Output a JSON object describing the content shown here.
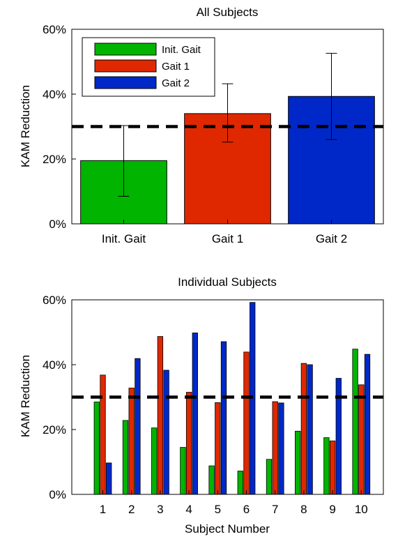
{
  "chart_data": [
    {
      "type": "bar",
      "title": "All Subjects",
      "xlabel": "",
      "ylabel": "KAM Reduction",
      "ylim": [
        0,
        60
      ],
      "yticks": [
        "0%",
        "20%",
        "40%",
        "60%"
      ],
      "categories": [
        "Init. Gait",
        "Gait 1",
        "Gait 2"
      ],
      "values": [
        19.5,
        34,
        39.3
      ],
      "error_low": [
        8.5,
        25.2,
        26
      ],
      "error_high": [
        30.3,
        43.2,
        52.6
      ],
      "colors": [
        "#00b400",
        "#e02800",
        "#0028c8"
      ],
      "reference_line": 30,
      "legend": {
        "placement": "top-left",
        "entries": [
          {
            "label": "Init. Gait",
            "color": "#00b400"
          },
          {
            "label": "Gait 1",
            "color": "#e02800"
          },
          {
            "label": "Gait 2",
            "color": "#0028c8"
          }
        ]
      }
    },
    {
      "type": "bar",
      "title": "Individual Subjects",
      "xlabel": "Subject Number",
      "ylabel": "KAM Reduction",
      "ylim": [
        0,
        60
      ],
      "yticks": [
        "0%",
        "20%",
        "40%",
        "60%"
      ],
      "categories": [
        "1",
        "2",
        "3",
        "4",
        "5",
        "6",
        "7",
        "8",
        "9",
        "10"
      ],
      "reference_line": 30,
      "series": [
        {
          "values": [
            28.5,
            22.8,
            20.5,
            14.5,
            8.8,
            7.2,
            10.8,
            19.5,
            17.5,
            44.8
          ],
          "color": "#00b400"
        },
        {
          "values": [
            36.8,
            32.8,
            48.7,
            31.5,
            28.3,
            43.9,
            28.6,
            40.4,
            16.5,
            33.8
          ],
          "color": "#e02800"
        },
        {
          "values": [
            9.7,
            41.9,
            38.3,
            49.8,
            47.1,
            59.2,
            28.2,
            40.0,
            35.8,
            43.2
          ],
          "color": "#0028c8"
        }
      ]
    }
  ]
}
